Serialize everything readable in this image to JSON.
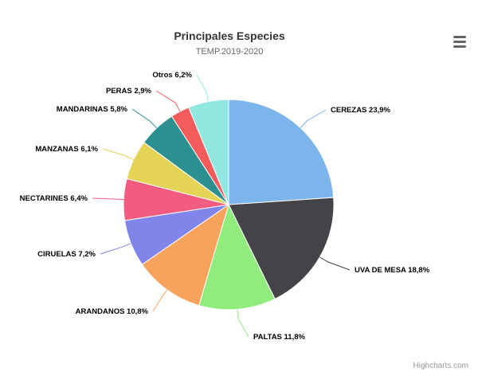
{
  "chart_data": {
    "type": "pie",
    "title": "Principales Especies",
    "subtitle": "TEMP.2019-2020",
    "slices": [
      {
        "name": "CEREZAS",
        "value": 23.9,
        "label": "CEREZAS 23,9%",
        "color": "#7cb5ec",
        "connector": "#7cb5ec"
      },
      {
        "name": "UVA DE MESA",
        "value": 18.8,
        "label": "UVA DE MESA 18,8%",
        "color": "#434348",
        "connector": "#434348"
      },
      {
        "name": "PALTAS",
        "value": 11.8,
        "label": "PALTAS 11,8%",
        "color": "#90ed7d",
        "connector": "#90ed7d"
      },
      {
        "name": "ARANDANOS",
        "value": 10.8,
        "label": "ARANDANOS 10,8%",
        "color": "#f7a35c",
        "connector": "#f7a35c"
      },
      {
        "name": "CIRUELAS",
        "value": 7.2,
        "label": "CIRUELAS 7,2%",
        "color": "#8085e9",
        "connector": "#8085e9"
      },
      {
        "name": "NECTARINES",
        "value": 6.4,
        "label": "NECTARINES 6,4%",
        "color": "#f15c80",
        "connector": "#f15c80"
      },
      {
        "name": "MANZANAS",
        "value": 6.1,
        "label": "MANZANAS 6,1%",
        "color": "#e4d354",
        "connector": "#e4d354"
      },
      {
        "name": "MANDARINAS",
        "value": 5.8,
        "label": "MANDARINAS 5,8%",
        "color": "#2b908f",
        "connector": "#2b908f"
      },
      {
        "name": "PERAS",
        "value": 2.9,
        "label": "PERAS 2,9%",
        "color": "#f45b5b",
        "connector": "#f45b5b"
      },
      {
        "name": "Otros",
        "value": 6.2,
        "label": "Otros 6,2%",
        "color": "#91e8e1",
        "connector": "#91e8e1"
      }
    ]
  },
  "credits": "Highcharts.com",
  "menu": {
    "icon": "hamburger-menu-icon"
  }
}
